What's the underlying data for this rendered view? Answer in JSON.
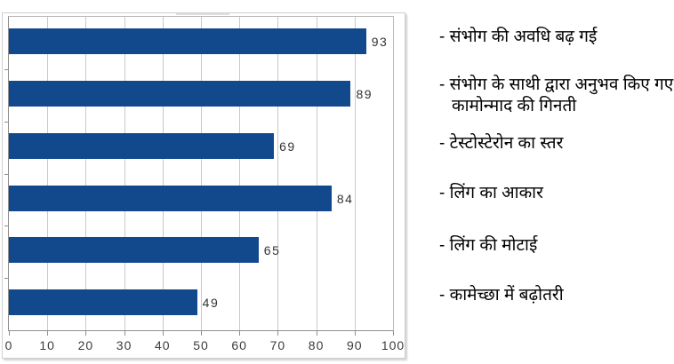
{
  "chart_data": {
    "type": "bar",
    "orientation": "horizontal",
    "title": "",
    "xlabel": "",
    "ylabel": "",
    "xlim": [
      0,
      100
    ],
    "xticks": [
      0,
      10,
      20,
      30,
      40,
      50,
      60,
      70,
      80,
      90,
      100
    ],
    "grid": "vertical",
    "legend_position": "none",
    "categories": [
      "संभोग की अवधि बढ़ गई",
      "संभोग के साथी द्वारा अनुभव किए गए कामोन्माद की गिनती",
      "टेस्टोस्टेरोन का स्तर",
      "लिंग का आकार",
      "लिंग की मोटाई",
      "कामेच्छा में बढ़ोतरी"
    ],
    "values": [
      93,
      89,
      69,
      84,
      65,
      49
    ],
    "value_labels": [
      "93",
      "89",
      "69",
      "84",
      "65",
      "49"
    ],
    "label_prefix": "- "
  },
  "colors": {
    "bar": "#12498C",
    "gridline": "#c9c9c9",
    "plot_border": "#8f8f8f",
    "value_text": "#333333",
    "tick_text": "#3c3c3c",
    "side_label_text": "#000000",
    "background": "#ffffff"
  }
}
